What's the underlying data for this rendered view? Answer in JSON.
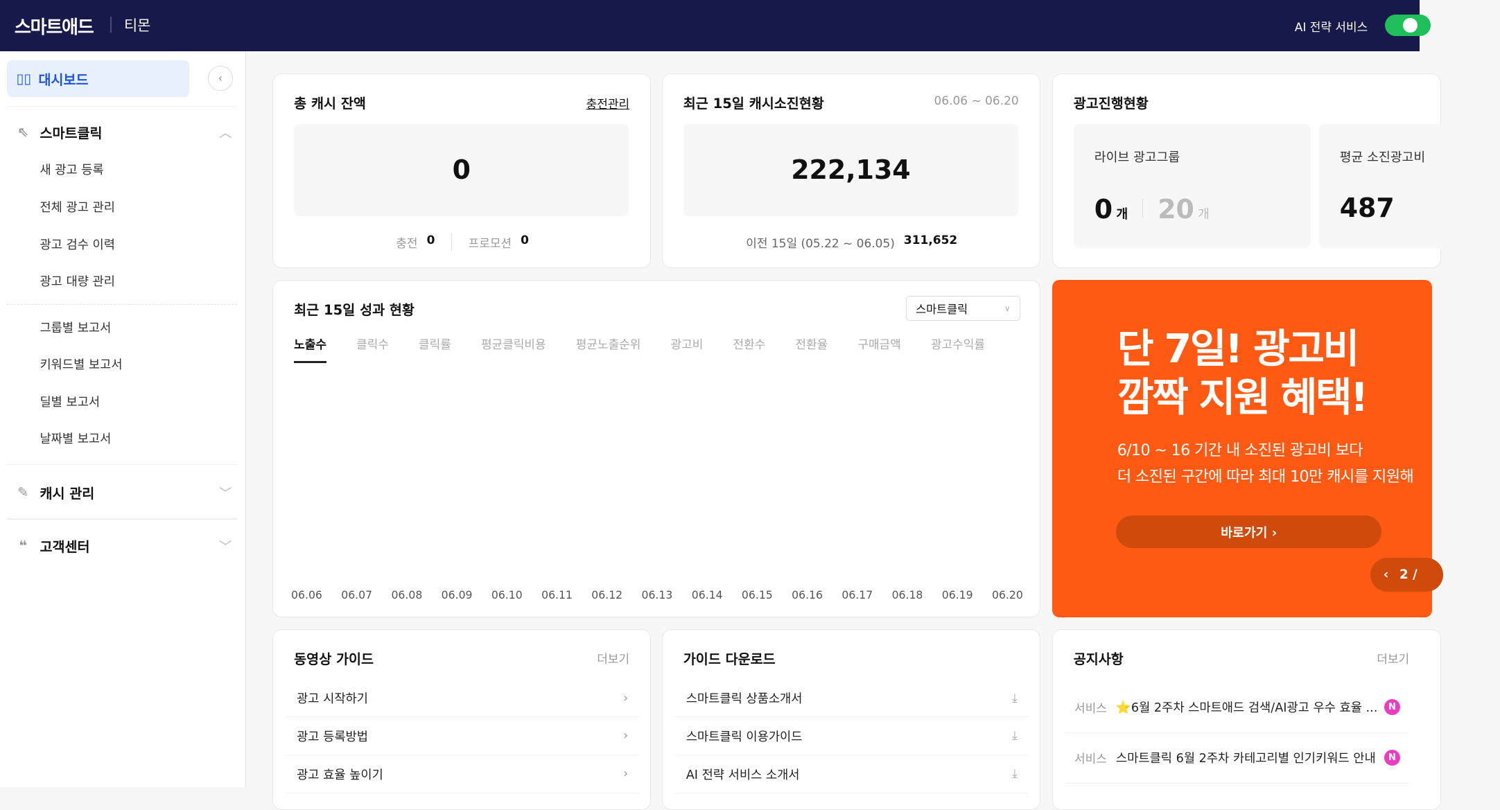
{
  "header": {
    "logo": "스마트애드",
    "store": "티몬",
    "ai_service": "AI 전략 서비스",
    "ai_service_on": true
  },
  "sidebar": {
    "dashboard": "대시보드",
    "smartclick": {
      "label": "스마트클릭",
      "items": [
        "새 광고 등록",
        "전체 광고 관리",
        "광고 검수 이력",
        "광고 대량 관리"
      ],
      "reports": [
        "그룹별 보고서",
        "키워드별 보고서",
        "딜별 보고서",
        "날짜별 보고서"
      ]
    },
    "cash": "캐시 관리",
    "support": "고객센터"
  },
  "cash_balance": {
    "title": "총 캐시 잔액",
    "link": "충전관리",
    "value": "0",
    "charge_label": "충전",
    "charge": "0",
    "promo_label": "프로모션",
    "promo": "0"
  },
  "spend": {
    "title": "최근 15일 캐시소진현황",
    "range": "06.06 ~ 06.20",
    "value": "222,134",
    "prev_label": "이전 15일 (05.22 ~ 06.05)",
    "prev_value": "311,652"
  },
  "ads_status": {
    "title": "광고진행현황",
    "live_label": "라이브 광고그룹",
    "live": "0",
    "unit": "개",
    "total": "20",
    "avg_label": "평균 소진광고비",
    "avg": "487"
  },
  "performance": {
    "title": "최근 15일 성과 현황",
    "select": "스마트클릭",
    "tabs": [
      "노출수",
      "클릭수",
      "클릭률",
      "평균클릭비용",
      "평균노출순위",
      "광고비",
      "전환수",
      "전환율",
      "구매금액",
      "광고수익률"
    ],
    "active_tab": "노출수"
  },
  "chart_data": {
    "type": "line",
    "categories": [
      "06.06",
      "06.07",
      "06.08",
      "06.09",
      "06.10",
      "06.11",
      "06.12",
      "06.13",
      "06.14",
      "06.15",
      "06.16",
      "06.17",
      "06.18",
      "06.19",
      "06.20"
    ],
    "series": []
  },
  "banner": {
    "line1": "단 7일! 광고비",
    "line2": "깜짝 지원 혜택!",
    "desc1": "6/10 ~ 16 기간 내 소진된 광고비 보다",
    "desc2": "더 소진된 구간에 따라 최대 10만 캐시를 지원해",
    "cta": "바로가기 ›",
    "pager": "2 /",
    "color": "#ff5a14"
  },
  "video_guide": {
    "title": "동영상 가이드",
    "more": "더보기",
    "items": [
      "광고 시작하기",
      "광고 등록방법",
      "광고 효율 높이기"
    ]
  },
  "downloads": {
    "title": "가이드 다운로드",
    "items": [
      "스마트클릭 상품소개서",
      "스마트클릭 이용가이드",
      "AI 전략 서비스 소개서"
    ]
  },
  "notices": {
    "title": "공지사항",
    "more": "더보기",
    "items": [
      {
        "category": "서비스",
        "text": "⭐6월 2주차 스마트애드 검색/AI광고 우수 효율 ...",
        "badge": "N"
      },
      {
        "category": "서비스",
        "text": "스마트클릭 6월 2주차 카테고리별 인기키워드 안내",
        "badge": "N"
      }
    ]
  }
}
